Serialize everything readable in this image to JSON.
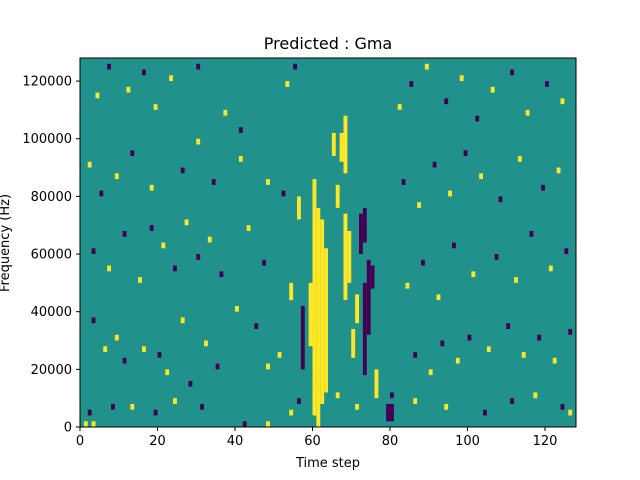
{
  "chart_data": {
    "type": "heatmap",
    "title": "Predicted : Gma",
    "xlabel": "Time step",
    "ylabel": "Frequency (Hz)",
    "xlim": [
      0,
      128
    ],
    "ylim": [
      0,
      128000
    ],
    "x_ticks": [
      0,
      20,
      40,
      60,
      80,
      100,
      120
    ],
    "y_ticks": [
      0,
      20000,
      40000,
      60000,
      80000,
      100000,
      120000
    ],
    "x_tick_labels": [
      "0",
      "20",
      "40",
      "60",
      "80",
      "100",
      "120"
    ],
    "y_tick_labels": [
      "0",
      "20000",
      "40000",
      "60000",
      "80000",
      "100000",
      "120000"
    ],
    "grid": false,
    "colormap": "viridis",
    "colors": {
      "low": "#440154",
      "mid": "#21918c",
      "high": "#fde725"
    },
    "background_level": "mid",
    "rows": 64,
    "row_height_hz": 2000,
    "cells": [
      {
        "x": 1,
        "y": 0,
        "v": "high"
      },
      {
        "x": 3,
        "y": 0,
        "v": "high"
      },
      {
        "x": 2,
        "y": 2,
        "v": "low"
      },
      {
        "x": 8,
        "y": 3,
        "v": "low"
      },
      {
        "x": 13,
        "y": 3,
        "v": "high"
      },
      {
        "x": 19,
        "y": 2,
        "v": "low"
      },
      {
        "x": 24,
        "y": 4,
        "v": "high"
      },
      {
        "x": 31,
        "y": 3,
        "v": "low"
      },
      {
        "x": 42,
        "y": 0,
        "v": "low"
      },
      {
        "x": 48,
        "y": 0,
        "v": "high"
      },
      {
        "x": 48,
        "y": 10,
        "v": "high"
      },
      {
        "x": 54,
        "y": 2,
        "v": "high"
      },
      {
        "x": 56,
        "y": 4,
        "v": "low"
      },
      {
        "x": 60,
        "y": 6,
        "v": "high"
      },
      {
        "x": 66,
        "y": 5,
        "v": "high"
      },
      {
        "x": 71,
        "y": 3,
        "v": "high"
      },
      {
        "x": 80,
        "y": 5,
        "v": "low"
      },
      {
        "x": 86,
        "y": 4,
        "v": "high"
      },
      {
        "x": 94,
        "y": 3,
        "v": "high"
      },
      {
        "x": 104,
        "y": 2,
        "v": "low"
      },
      {
        "x": 111,
        "y": 4,
        "v": "low"
      },
      {
        "x": 117,
        "y": 5,
        "v": "high"
      },
      {
        "x": 124,
        "y": 3,
        "v": "low"
      },
      {
        "x": 126,
        "y": 2,
        "v": "high"
      },
      {
        "x": 3,
        "y": 18,
        "v": "low"
      },
      {
        "x": 6,
        "y": 13,
        "v": "high"
      },
      {
        "x": 9,
        "y": 15,
        "v": "high"
      },
      {
        "x": 11,
        "y": 11,
        "v": "low"
      },
      {
        "x": 16,
        "y": 13,
        "v": "high"
      },
      {
        "x": 20,
        "y": 12,
        "v": "low"
      },
      {
        "x": 22,
        "y": 9,
        "v": "high"
      },
      {
        "x": 26,
        "y": 18,
        "v": "high"
      },
      {
        "x": 28,
        "y": 7,
        "v": "low"
      },
      {
        "x": 32,
        "y": 14,
        "v": "high"
      },
      {
        "x": 35,
        "y": 10,
        "v": "low"
      },
      {
        "x": 40,
        "y": 20,
        "v": "high"
      },
      {
        "x": 45,
        "y": 17,
        "v": "low"
      },
      {
        "x": 51,
        "y": 12,
        "v": "high"
      },
      {
        "x": 3,
        "y": 30,
        "v": "low"
      },
      {
        "x": 7,
        "y": 27,
        "v": "high"
      },
      {
        "x": 11,
        "y": 33,
        "v": "low"
      },
      {
        "x": 15,
        "y": 25,
        "v": "high"
      },
      {
        "x": 18,
        "y": 34,
        "v": "low"
      },
      {
        "x": 21,
        "y": 31,
        "v": "high"
      },
      {
        "x": 24,
        "y": 27,
        "v": "low"
      },
      {
        "x": 27,
        "y": 35,
        "v": "high"
      },
      {
        "x": 30,
        "y": 29,
        "v": "low"
      },
      {
        "x": 33,
        "y": 32,
        "v": "high"
      },
      {
        "x": 36,
        "y": 26,
        "v": "low"
      },
      {
        "x": 43,
        "y": 34,
        "v": "high"
      },
      {
        "x": 47,
        "y": 28,
        "v": "low"
      },
      {
        "x": 2,
        "y": 45,
        "v": "high"
      },
      {
        "x": 5,
        "y": 40,
        "v": "low"
      },
      {
        "x": 9,
        "y": 43,
        "v": "high"
      },
      {
        "x": 13,
        "y": 47,
        "v": "low"
      },
      {
        "x": 18,
        "y": 41,
        "v": "high"
      },
      {
        "x": 26,
        "y": 44,
        "v": "low"
      },
      {
        "x": 30,
        "y": 49,
        "v": "high"
      },
      {
        "x": 34,
        "y": 42,
        "v": "low"
      },
      {
        "x": 41,
        "y": 46,
        "v": "high"
      },
      {
        "x": 48,
        "y": 42,
        "v": "high"
      },
      {
        "x": 52,
        "y": 40,
        "v": "low"
      },
      {
        "x": 4,
        "y": 57,
        "v": "high"
      },
      {
        "x": 7,
        "y": 62,
        "v": "low"
      },
      {
        "x": 12,
        "y": 58,
        "v": "high"
      },
      {
        "x": 16,
        "y": 61,
        "v": "low"
      },
      {
        "x": 19,
        "y": 55,
        "v": "high"
      },
      {
        "x": 23,
        "y": 60,
        "v": "high"
      },
      {
        "x": 30,
        "y": 62,
        "v": "low"
      },
      {
        "x": 37,
        "y": 54,
        "v": "high"
      },
      {
        "x": 41,
        "y": 51,
        "v": "low"
      },
      {
        "x": 53,
        "y": 59,
        "v": "high"
      },
      {
        "x": 55,
        "y": 62,
        "v": "low"
      },
      {
        "x": 86,
        "y": 12,
        "v": "low"
      },
      {
        "x": 90,
        "y": 9,
        "v": "high"
      },
      {
        "x": 93,
        "y": 14,
        "v": "low"
      },
      {
        "x": 97,
        "y": 11,
        "v": "high"
      },
      {
        "x": 100,
        "y": 15,
        "v": "low"
      },
      {
        "x": 105,
        "y": 13,
        "v": "high"
      },
      {
        "x": 110,
        "y": 17,
        "v": "low"
      },
      {
        "x": 114,
        "y": 12,
        "v": "high"
      },
      {
        "x": 118,
        "y": 15,
        "v": "low"
      },
      {
        "x": 122,
        "y": 11,
        "v": "high"
      },
      {
        "x": 126,
        "y": 16,
        "v": "low"
      },
      {
        "x": 84,
        "y": 24,
        "v": "high"
      },
      {
        "x": 88,
        "y": 28,
        "v": "low"
      },
      {
        "x": 92,
        "y": 22,
        "v": "high"
      },
      {
        "x": 96,
        "y": 31,
        "v": "low"
      },
      {
        "x": 101,
        "y": 26,
        "v": "high"
      },
      {
        "x": 107,
        "y": 29,
        "v": "low"
      },
      {
        "x": 112,
        "y": 25,
        "v": "high"
      },
      {
        "x": 116,
        "y": 33,
        "v": "low"
      },
      {
        "x": 121,
        "y": 27,
        "v": "high"
      },
      {
        "x": 125,
        "y": 30,
        "v": "low"
      },
      {
        "x": 83,
        "y": 42,
        "v": "low"
      },
      {
        "x": 87,
        "y": 38,
        "v": "high"
      },
      {
        "x": 91,
        "y": 45,
        "v": "low"
      },
      {
        "x": 95,
        "y": 40,
        "v": "high"
      },
      {
        "x": 99,
        "y": 47,
        "v": "low"
      },
      {
        "x": 103,
        "y": 43,
        "v": "high"
      },
      {
        "x": 108,
        "y": 39,
        "v": "low"
      },
      {
        "x": 113,
        "y": 46,
        "v": "high"
      },
      {
        "x": 119,
        "y": 41,
        "v": "low"
      },
      {
        "x": 123,
        "y": 44,
        "v": "high"
      },
      {
        "x": 82,
        "y": 55,
        "v": "high"
      },
      {
        "x": 85,
        "y": 59,
        "v": "low"
      },
      {
        "x": 89,
        "y": 62,
        "v": "high"
      },
      {
        "x": 94,
        "y": 56,
        "v": "low"
      },
      {
        "x": 98,
        "y": 60,
        "v": "high"
      },
      {
        "x": 102,
        "y": 53,
        "v": "low"
      },
      {
        "x": 106,
        "y": 58,
        "v": "high"
      },
      {
        "x": 111,
        "y": 61,
        "v": "low"
      },
      {
        "x": 115,
        "y": 54,
        "v": "high"
      },
      {
        "x": 120,
        "y": 59,
        "v": "low"
      },
      {
        "x": 124,
        "y": 56,
        "v": "high"
      }
    ],
    "bands": [
      {
        "x": 60,
        "y0": 2,
        "y1": 42,
        "v": "high"
      },
      {
        "x": 61,
        "y0": 0,
        "y1": 37,
        "v": "high"
      },
      {
        "x": 62,
        "y0": 4,
        "y1": 35,
        "v": "high"
      },
      {
        "x": 63,
        "y0": 6,
        "y1": 30,
        "v": "high"
      },
      {
        "x": 59,
        "y0": 14,
        "y1": 24,
        "v": "high"
      },
      {
        "x": 57,
        "y0": 10,
        "y1": 20,
        "v": "low"
      },
      {
        "x": 68,
        "y0": 22,
        "y1": 36,
        "v": "high"
      },
      {
        "x": 69,
        "y0": 25,
        "y1": 33,
        "v": "high"
      },
      {
        "x": 67,
        "y0": 46,
        "y1": 50,
        "v": "high"
      },
      {
        "x": 68,
        "y0": 44,
        "y1": 53,
        "v": "high"
      },
      {
        "x": 73,
        "y0": 9,
        "y1": 24,
        "v": "low"
      },
      {
        "x": 74,
        "y0": 16,
        "y1": 28,
        "v": "low"
      },
      {
        "x": 72,
        "y0": 30,
        "y1": 36,
        "v": "low"
      },
      {
        "x": 73,
        "y0": 32,
        "y1": 37,
        "v": "low"
      },
      {
        "x": 75,
        "y0": 24,
        "y1": 27,
        "v": "low"
      },
      {
        "x": 76,
        "y0": 5,
        "y1": 9,
        "v": "high"
      },
      {
        "x": 70,
        "y0": 12,
        "y1": 16,
        "v": "high"
      },
      {
        "x": 71,
        "y0": 18,
        "y1": 22,
        "v": "high"
      },
      {
        "x": 66,
        "y0": 38,
        "y1": 41,
        "v": "high"
      },
      {
        "x": 65,
        "y0": 47,
        "y1": 50,
        "v": "high"
      },
      {
        "x": 79,
        "y0": 1,
        "y1": 3,
        "v": "low"
      },
      {
        "x": 80,
        "y0": 1,
        "y1": 3,
        "v": "low"
      },
      {
        "x": 56,
        "y0": 36,
        "y1": 39,
        "v": "high"
      },
      {
        "x": 54,
        "y0": 22,
        "y1": 24,
        "v": "high"
      }
    ]
  }
}
